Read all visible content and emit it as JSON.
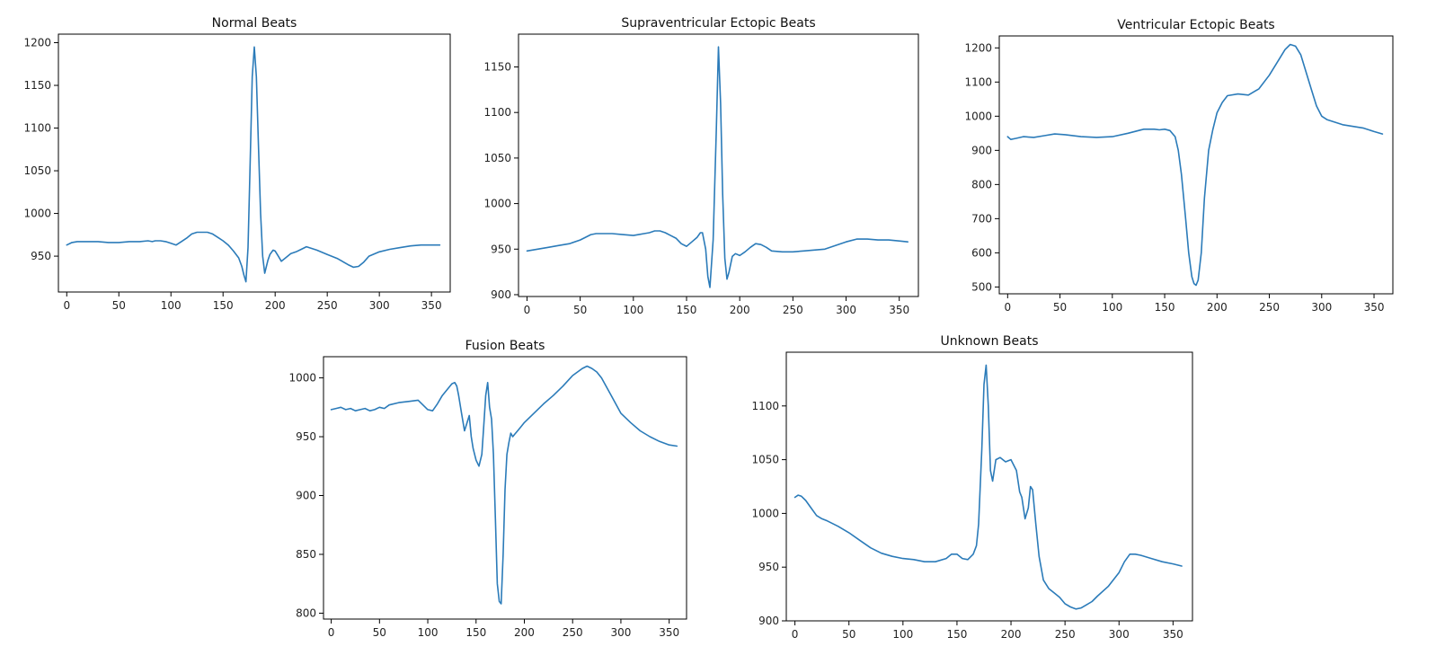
{
  "colors": {
    "line": "#2b7bb9",
    "axis": "#000000"
  },
  "chart_data": [
    {
      "type": "line",
      "title": "Normal Beats",
      "xlim": [
        -8,
        368
      ],
      "ylim": [
        908,
        1210
      ],
      "xticks": [
        0,
        50,
        100,
        150,
        200,
        250,
        300,
        350
      ],
      "yticks": [
        950,
        1000,
        1050,
        1100,
        1150,
        1200
      ],
      "series": [
        {
          "x": [
            0,
            5,
            10,
            20,
            30,
            40,
            50,
            60,
            70,
            78,
            82,
            85,
            90,
            95,
            100,
            105,
            110,
            115,
            120,
            125,
            130,
            135,
            140,
            145,
            150,
            155,
            160,
            165,
            168,
            170,
            172,
            174,
            176,
            178,
            180,
            182,
            184,
            186,
            188,
            190,
            193,
            195,
            198,
            200,
            203,
            206,
            210,
            215,
            220,
            225,
            230,
            240,
            250,
            260,
            270,
            275,
            280,
            285,
            290,
            300,
            310,
            320,
            330,
            340,
            350,
            358
          ],
          "y": [
            963,
            966,
            967,
            967,
            967,
            966,
            966,
            967,
            967,
            968,
            967,
            968,
            968,
            967,
            965,
            963,
            967,
            971,
            976,
            978,
            978,
            978,
            976,
            972,
            968,
            963,
            956,
            948,
            938,
            928,
            920,
            960,
            1060,
            1160,
            1195,
            1160,
            1080,
            1000,
            950,
            930,
            945,
            952,
            957,
            956,
            950,
            944,
            948,
            953,
            955,
            958,
            961,
            957,
            952,
            947,
            940,
            937,
            938,
            943,
            950,
            955,
            958,
            960,
            962,
            963,
            963,
            963
          ]
        }
      ]
    },
    {
      "type": "line",
      "title": "Supraventricular Ectopic Beats",
      "xlim": [
        -8,
        368
      ],
      "ylim": [
        898,
        1186
      ],
      "xticks": [
        0,
        50,
        100,
        150,
        200,
        250,
        300,
        350
      ],
      "yticks": [
        900,
        950,
        1000,
        1050,
        1100,
        1150
      ],
      "series": [
        {
          "x": [
            0,
            10,
            20,
            30,
            40,
            50,
            55,
            60,
            65,
            70,
            80,
            90,
            100,
            105,
            110,
            115,
            120,
            125,
            130,
            135,
            140,
            145,
            150,
            155,
            160,
            163,
            165,
            168,
            170,
            172,
            175,
            178,
            180,
            182,
            184,
            186,
            188,
            190,
            193,
            196,
            200,
            205,
            210,
            215,
            220,
            225,
            230,
            240,
            250,
            260,
            270,
            280,
            290,
            300,
            310,
            320,
            330,
            340,
            350,
            358
          ],
          "y": [
            948,
            950,
            952,
            954,
            956,
            960,
            963,
            966,
            967,
            967,
            967,
            966,
            965,
            966,
            967,
            968,
            970,
            970,
            968,
            965,
            962,
            956,
            953,
            958,
            963,
            968,
            968,
            950,
            920,
            908,
            960,
            1080,
            1172,
            1110,
            1010,
            940,
            917,
            925,
            942,
            945,
            943,
            947,
            952,
            956,
            955,
            952,
            948,
            947,
            947,
            948,
            949,
            950,
            954,
            958,
            961,
            961,
            960,
            960,
            959,
            958
          ]
        }
      ]
    },
    {
      "type": "line",
      "title": "Ventricular Ectopic Beats",
      "xlim": [
        -8,
        368
      ],
      "ylim": [
        480,
        1235
      ],
      "xticks": [
        0,
        50,
        100,
        150,
        200,
        250,
        300,
        350
      ],
      "yticks": [
        500,
        600,
        700,
        800,
        900,
        1000,
        1100,
        1200
      ],
      "series": [
        {
          "x": [
            0,
            3,
            8,
            15,
            25,
            35,
            45,
            55,
            70,
            85,
            100,
            115,
            130,
            140,
            145,
            150,
            155,
            160,
            163,
            166,
            170,
            173,
            176,
            178,
            180,
            182,
            185,
            188,
            192,
            196,
            200,
            205,
            210,
            220,
            230,
            240,
            250,
            260,
            265,
            270,
            275,
            280,
            285,
            290,
            295,
            300,
            305,
            310,
            320,
            330,
            340,
            350,
            358
          ],
          "y": [
            940,
            932,
            935,
            940,
            938,
            943,
            948,
            946,
            940,
            938,
            940,
            950,
            962,
            962,
            960,
            962,
            958,
            940,
            900,
            830,
            700,
            600,
            530,
            510,
            505,
            520,
            600,
            760,
            900,
            960,
            1010,
            1040,
            1060,
            1065,
            1062,
            1080,
            1120,
            1170,
            1195,
            1210,
            1205,
            1180,
            1130,
            1080,
            1030,
            1000,
            990,
            985,
            975,
            970,
            965,
            955,
            948
          ]
        }
      ]
    },
    {
      "type": "line",
      "title": "Fusion Beats",
      "xlim": [
        -8,
        368
      ],
      "ylim": [
        795,
        1018
      ],
      "xticks": [
        0,
        50,
        100,
        150,
        200,
        250,
        300,
        350
      ],
      "yticks": [
        800,
        850,
        900,
        950,
        1000
      ],
      "series": [
        {
          "x": [
            0,
            5,
            10,
            15,
            20,
            25,
            30,
            35,
            40,
            45,
            50,
            55,
            60,
            70,
            80,
            90,
            100,
            105,
            110,
            115,
            120,
            125,
            128,
            130,
            132,
            135,
            138,
            140,
            143,
            145,
            147,
            150,
            153,
            156,
            158,
            160,
            162,
            164,
            166,
            168,
            170,
            172,
            174,
            176,
            178,
            180,
            182,
            184,
            186,
            188,
            190,
            193,
            196,
            200,
            210,
            220,
            230,
            240,
            250,
            260,
            265,
            270,
            275,
            280,
            290,
            300,
            310,
            320,
            330,
            340,
            350,
            358
          ],
          "y": [
            973,
            974,
            975,
            973,
            974,
            972,
            973,
            974,
            972,
            973,
            975,
            974,
            977,
            979,
            980,
            981,
            973,
            972,
            978,
            985,
            990,
            995,
            996,
            993,
            985,
            970,
            955,
            960,
            968,
            950,
            940,
            930,
            925,
            935,
            960,
            985,
            996,
            975,
            965,
            935,
            880,
            825,
            810,
            808,
            850,
            905,
            935,
            945,
            953,
            950,
            952,
            955,
            958,
            962,
            970,
            978,
            985,
            993,
            1002,
            1008,
            1010,
            1008,
            1005,
            1000,
            985,
            970,
            962,
            955,
            950,
            946,
            943,
            942
          ]
        }
      ]
    },
    {
      "type": "line",
      "title": "Unknown Beats",
      "xlim": [
        -8,
        368
      ],
      "ylim": [
        900,
        1150
      ],
      "xticks": [
        0,
        50,
        100,
        150,
        200,
        250,
        300,
        350
      ],
      "yticks": [
        900,
        950,
        1000,
        1050,
        1100
      ],
      "series": [
        {
          "x": [
            0,
            3,
            6,
            10,
            15,
            20,
            25,
            30,
            40,
            50,
            60,
            70,
            80,
            90,
            100,
            110,
            120,
            130,
            140,
            145,
            150,
            155,
            160,
            165,
            168,
            170,
            173,
            175,
            177,
            179,
            181,
            183,
            186,
            190,
            195,
            200,
            205,
            208,
            210,
            213,
            216,
            218,
            220,
            223,
            226,
            230,
            235,
            240,
            245,
            250,
            255,
            260,
            265,
            270,
            275,
            280,
            290,
            300,
            305,
            310,
            315,
            320,
            330,
            340,
            350,
            358
          ],
          "y": [
            1015,
            1017,
            1016,
            1012,
            1005,
            998,
            995,
            993,
            988,
            982,
            975,
            968,
            963,
            960,
            958,
            957,
            955,
            955,
            958,
            962,
            962,
            958,
            957,
            962,
            970,
            990,
            1060,
            1120,
            1138,
            1100,
            1040,
            1030,
            1050,
            1052,
            1048,
            1050,
            1040,
            1020,
            1015,
            995,
            1005,
            1025,
            1022,
            990,
            960,
            938,
            930,
            926,
            922,
            916,
            913,
            911,
            912,
            915,
            918,
            923,
            932,
            945,
            955,
            962,
            962,
            961,
            958,
            955,
            953,
            951
          ]
        }
      ]
    }
  ]
}
